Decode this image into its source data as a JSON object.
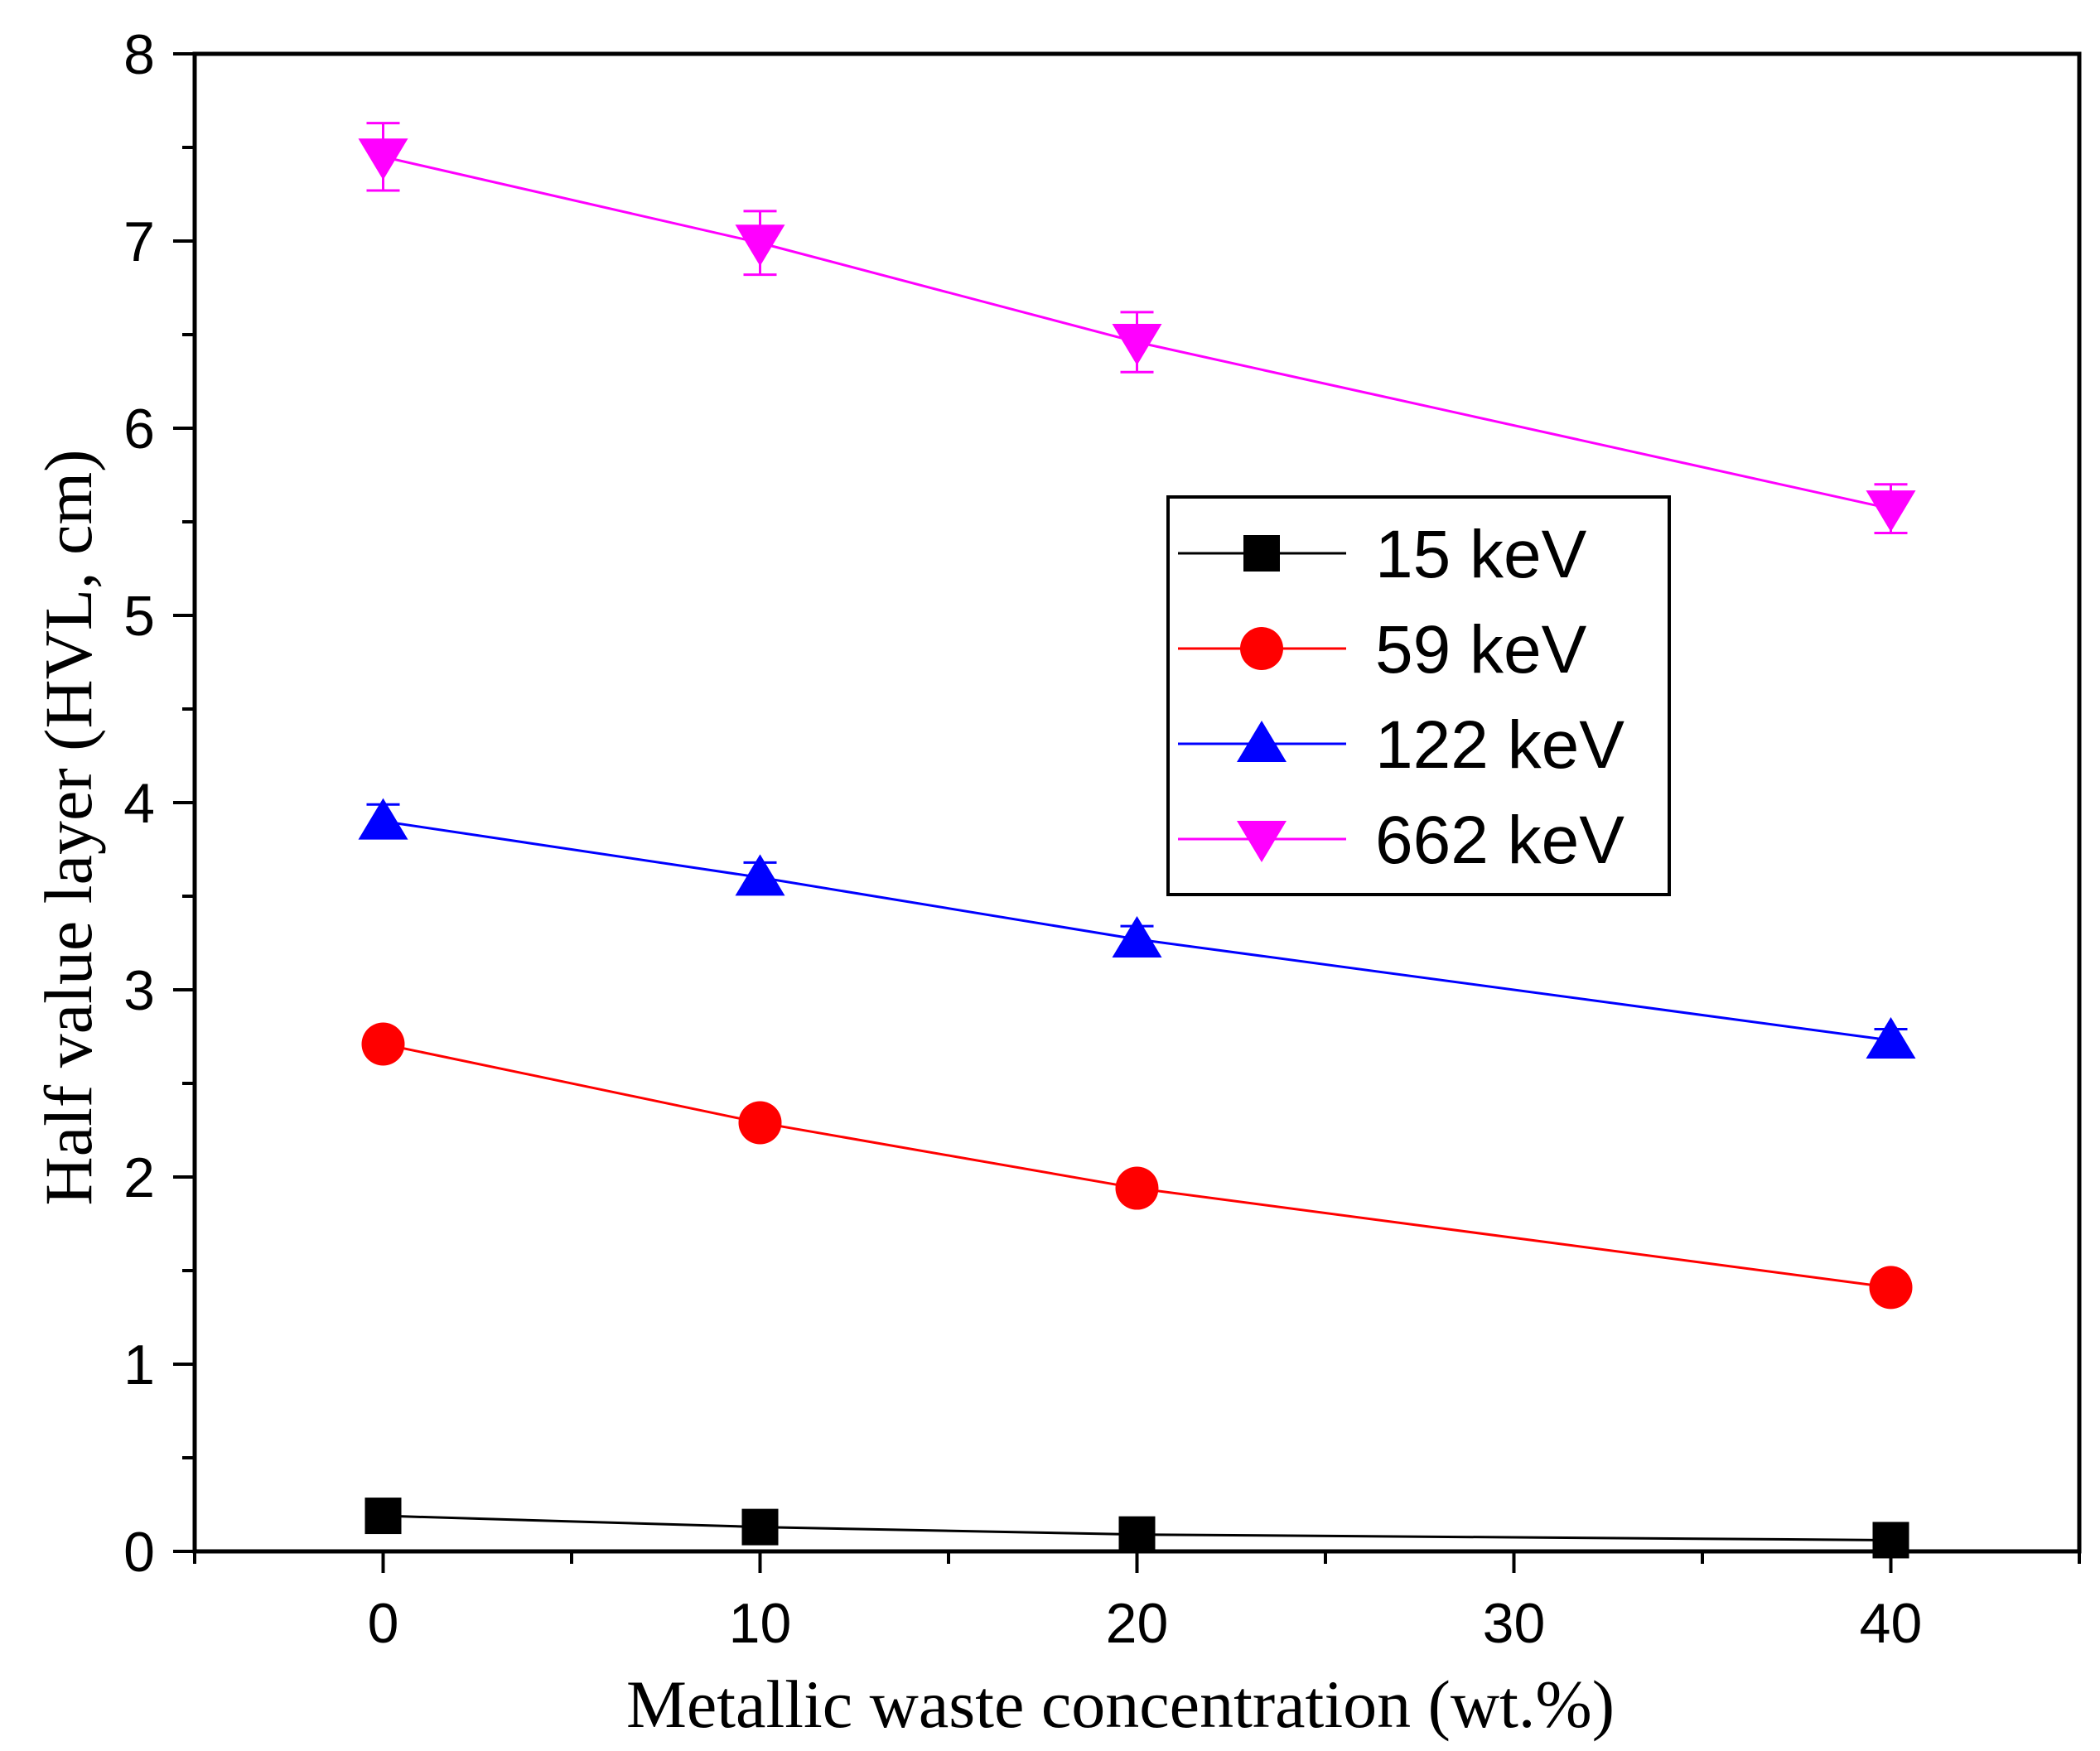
{
  "chart_data": {
    "type": "line",
    "xlabel": "Metallic waste concentration (wt.%)",
    "ylabel": "Half value layer (HVL, cm)",
    "xlim": [
      -5,
      45
    ],
    "ylim": [
      0,
      8
    ],
    "x_ticks": [
      0,
      10,
      20,
      30,
      40
    ],
    "x_minor_ticks": [
      -5,
      5,
      15,
      25,
      35,
      45
    ],
    "y_ticks": [
      0,
      1,
      2,
      3,
      4,
      5,
      6,
      7,
      8
    ],
    "y_minor_ticks": [
      0.5,
      1.5,
      2.5,
      3.5,
      4.5,
      5.5,
      6.5,
      7.5
    ],
    "grid": false,
    "legend_position": "center-right",
    "x": [
      0,
      10,
      20,
      40
    ],
    "series": [
      {
        "name": "15 keV",
        "color": "#000000",
        "marker": "square",
        "values": [
          0.19,
          0.13,
          0.09,
          0.06
        ],
        "errors": [
          0.02,
          0.02,
          0.01,
          0.01
        ]
      },
      {
        "name": "59 keV",
        "color": "#ff0000",
        "marker": "circle",
        "values": [
          2.71,
          2.29,
          1.94,
          1.41
        ],
        "errors": [
          0.03,
          0.03,
          0.03,
          0.03
        ]
      },
      {
        "name": "122 keV",
        "color": "#0000ff",
        "marker": "triangle-up",
        "values": [
          3.9,
          3.6,
          3.27,
          2.73
        ],
        "errors": [
          0.09,
          0.08,
          0.07,
          0.06
        ]
      },
      {
        "name": "662 keV",
        "color": "#ff00ff",
        "marker": "triangle-down",
        "values": [
          7.45,
          6.99,
          6.46,
          5.57
        ],
        "errors": [
          0.18,
          0.17,
          0.16,
          0.13
        ]
      }
    ]
  }
}
